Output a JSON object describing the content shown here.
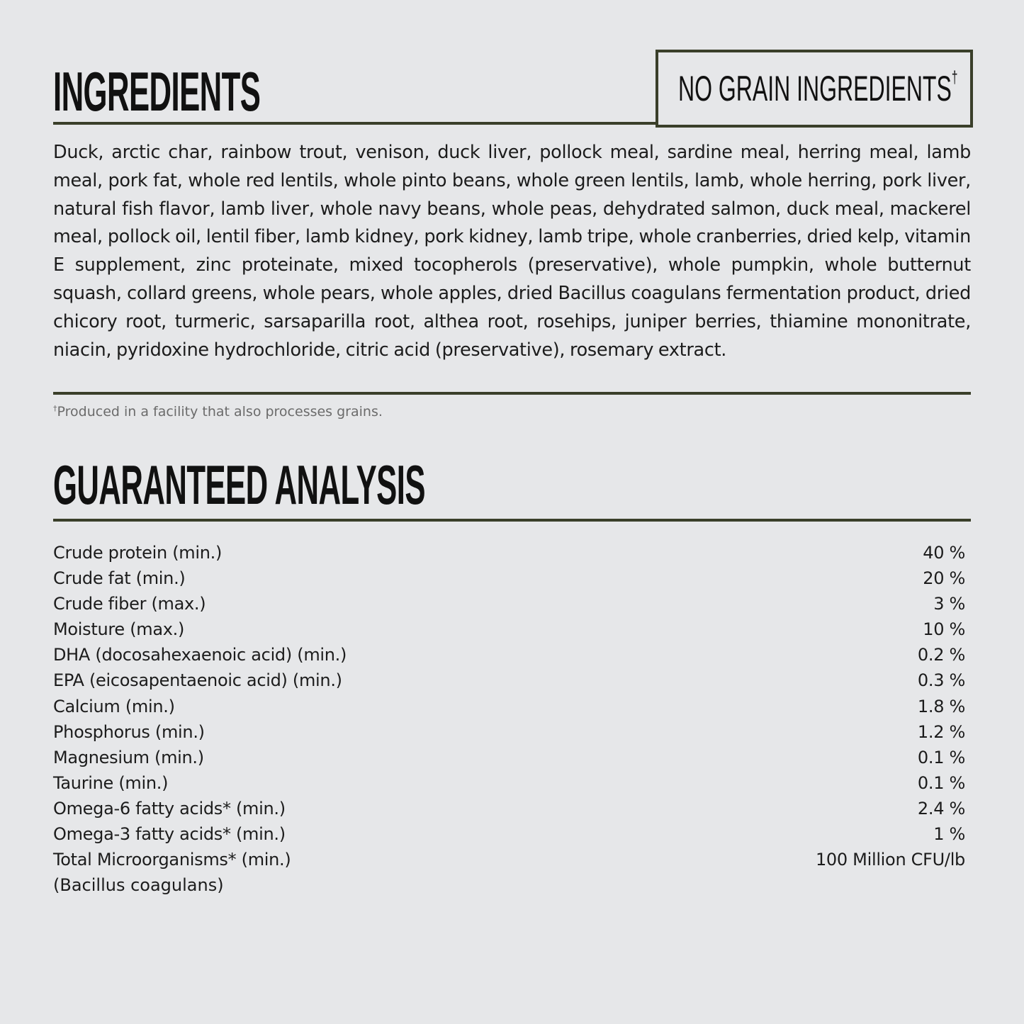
{
  "ingredients": {
    "title": "INGREDIENTS",
    "badge": "NO GRAIN INGREDIENTS",
    "badge_mark": "†",
    "text": "Duck, arctic char, rainbow trout, venison, duck liver, pollock meal, sardine meal, herring meal, lamb meal, pork fat, whole red lentils, whole pinto beans, whole green lentils, lamb, whole herring, pork liver, natural fish flavor, lamb liver, whole navy beans, whole peas, dehydrated salmon, duck meal, mackerel meal, pollock oil, lentil fiber, lamb kidney, pork kidney, lamb tripe, whole cranberries, dried kelp, vitamin E supplement, zinc proteinate, mixed tocopherols (preservative), whole pumpkin, whole butternut squash, collard greens, whole pears, whole apples, dried Bacillus coagulans fermentation product, dried chicory root, turmeric, sarsaparilla root, althea root, rosehips, juniper berries, thiamine mononitrate, niacin, pyridoxine hydrochloride, citric acid (preservative), rosemary extract.",
    "footnote_mark": "†",
    "footnote": "Produced in a facility that also processes grains."
  },
  "analysis": {
    "title": "GUARANTEED ANALYSIS",
    "rows": [
      {
        "label": "Crude protein (min.)",
        "value": "40 %"
      },
      {
        "label": "Crude fat (min.)",
        "value": "20 %"
      },
      {
        "label": "Crude fiber (max.)",
        "value": "3 %"
      },
      {
        "label": "Moisture (max.)",
        "value": "10 %"
      },
      {
        "label": "DHA (docosahexaenoic acid) (min.)",
        "value": "0.2 %"
      },
      {
        "label": "EPA (eicosapentaenoic acid) (min.)",
        "value": "0.3 %"
      },
      {
        "label": "Calcium (min.)",
        "value": "1.8 %"
      },
      {
        "label": "Phosphorus (min.)",
        "value": "1.2 %"
      },
      {
        "label": "Magnesium (min.)",
        "value": "0.1 %"
      },
      {
        "label": "Taurine (min.)",
        "value": "0.1 %"
      },
      {
        "label": "Omega-6 fatty acids* (min.)",
        "value": "2.4 %"
      },
      {
        "label": "Omega-3 fatty acids* (min.)",
        "value": "1 %"
      },
      {
        "label": "Total Microorganisms* (min.)",
        "value": "100 Million CFU/lb"
      }
    ],
    "last_row_sub": "(Bacillus coagulans)"
  },
  "colors": {
    "background": "#e6e7e9",
    "rule": "#3a3f2a"
  }
}
